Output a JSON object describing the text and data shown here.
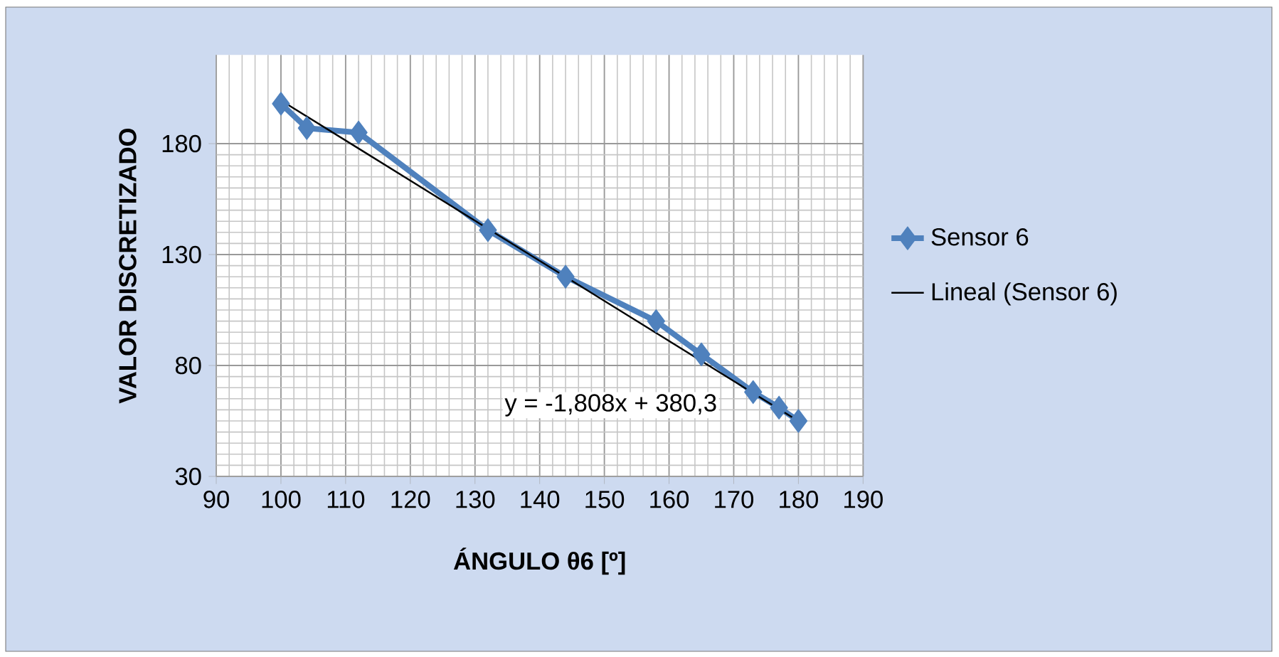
{
  "chart_data": {
    "type": "line",
    "xlabel": "ÁNGULO  θ6 [º]",
    "ylabel": "VALOR  DISCRETIZADO",
    "xlim": [
      90,
      190
    ],
    "xticks": [
      90,
      100,
      110,
      120,
      130,
      140,
      150,
      160,
      170,
      180,
      190
    ],
    "ylim": [
      30,
      220
    ],
    "yticks": [
      30,
      80,
      130,
      180
    ],
    "grid": true,
    "legend": "right",
    "marker": "diamond",
    "series": [
      {
        "name": "Sensor 6",
        "color": "#4f81bd",
        "x": [
          100,
          104,
          112,
          132,
          144,
          158,
          165,
          173,
          177,
          180
        ],
        "values": [
          198,
          187,
          185,
          141,
          120,
          100,
          85,
          68,
          61,
          55
        ]
      },
      {
        "name": "Lineal (Sensor 6)",
        "color": "#000000",
        "type": "line",
        "marker": "none",
        "x": [
          100,
          180
        ],
        "values": [
          199.5,
          54.9
        ]
      }
    ],
    "annotations": [
      "y = -1,808x + 380,3"
    ]
  }
}
